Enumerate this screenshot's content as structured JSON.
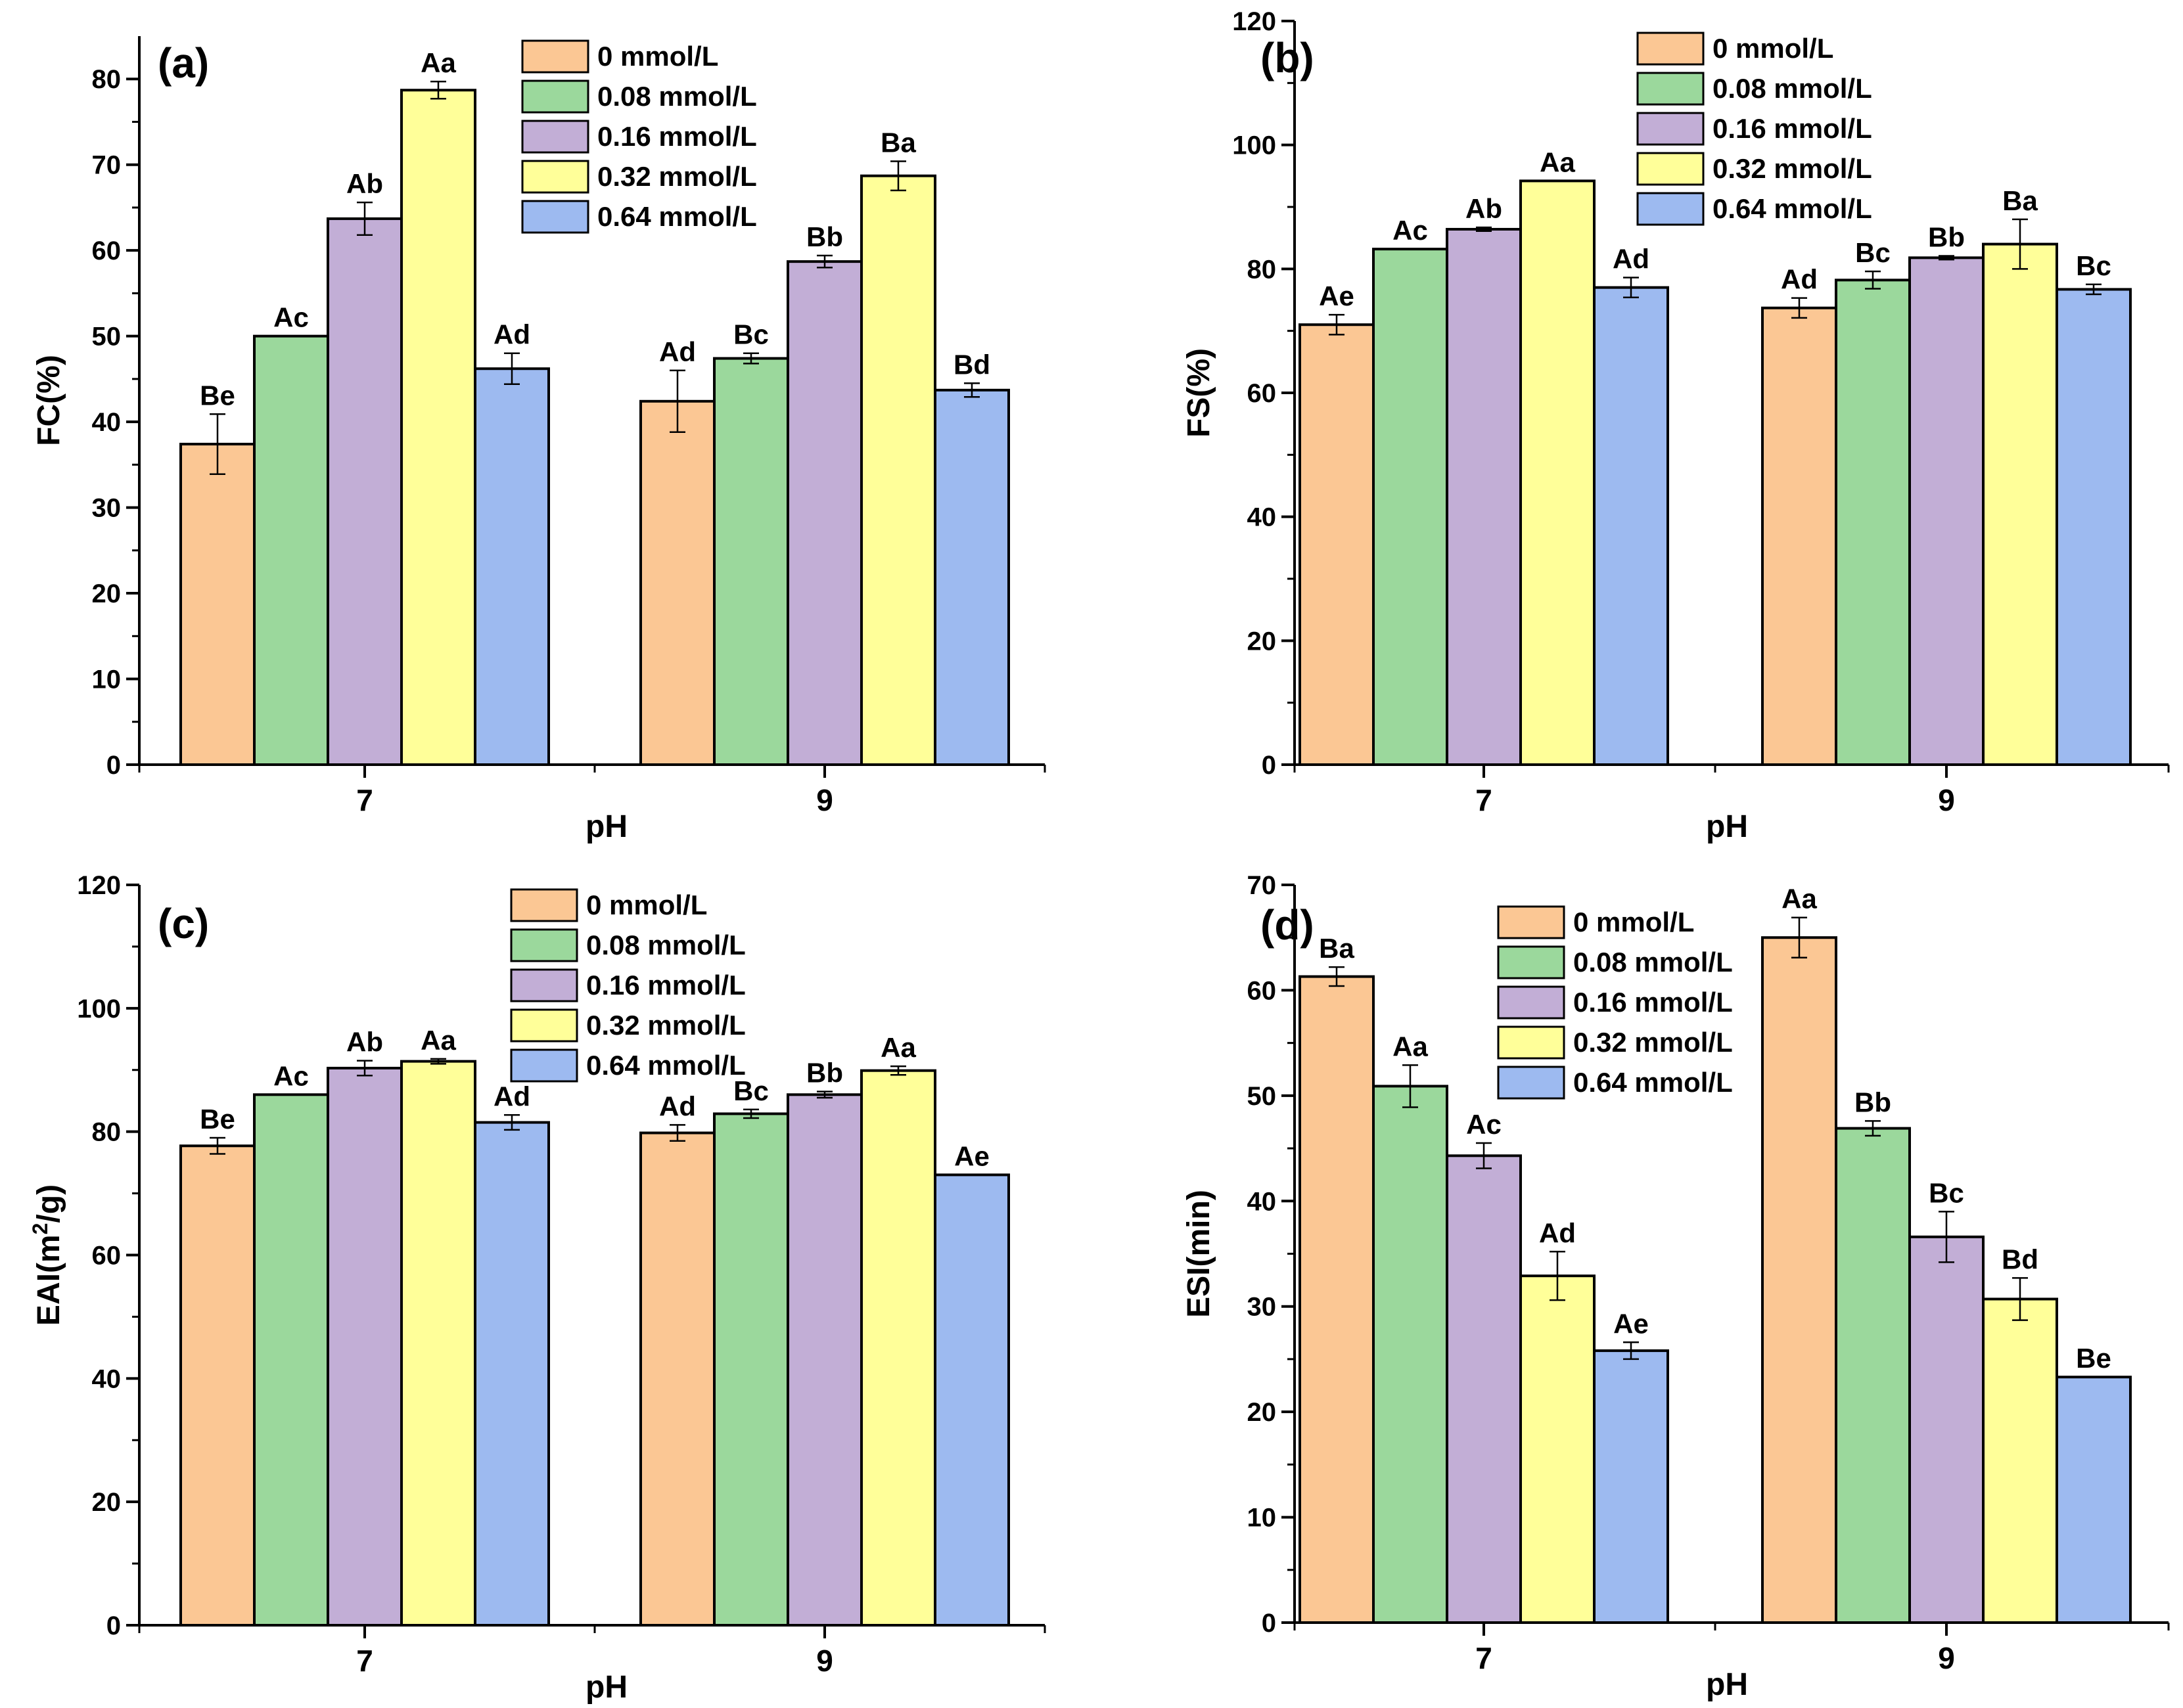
{
  "colors": {
    "s0": "#fbc794",
    "s1": "#9bd89c",
    "s2": "#c2aed6",
    "s3": "#ffff99",
    "s4": "#9dbaf0",
    "stroke": "#000000"
  },
  "chart_data": [
    {
      "type": "bar",
      "panel": "(a)",
      "xlabel": "pH",
      "ylabel": "FC(%)",
      "ylim": [
        0,
        85
      ],
      "yticks": [
        "0",
        "10",
        "20",
        "30",
        "40",
        "50",
        "60",
        "70",
        "80"
      ],
      "categories": [
        "7",
        "9"
      ],
      "legend_position": "top-center",
      "series": [
        {
          "name": "0 mmol/L",
          "values": [
            37.4,
            42.4
          ],
          "errors": [
            3.5,
            3.6
          ],
          "labels": [
            "Be",
            "Ad"
          ]
        },
        {
          "name": "0.08 mmol/L",
          "values": [
            50.0,
            47.4
          ],
          "errors": [
            0,
            0.6
          ],
          "labels": [
            "Ac",
            "Bc"
          ]
        },
        {
          "name": "0.16 mmol/L",
          "values": [
            63.7,
            58.7
          ],
          "errors": [
            1.9,
            0.7
          ],
          "labels": [
            "Ab",
            "Bb"
          ]
        },
        {
          "name": "0.32 mmol/L",
          "values": [
            78.7,
            68.7
          ],
          "errors": [
            1.0,
            1.7
          ],
          "labels": [
            "Aa",
            "Ba"
          ]
        },
        {
          "name": "0.64 mmol/L",
          "values": [
            46.2,
            43.7
          ],
          "errors": [
            1.8,
            0.8
          ],
          "labels": [
            "Ad",
            "Bd"
          ]
        }
      ]
    },
    {
      "type": "bar",
      "panel": "(b)",
      "xlabel": "pH",
      "ylabel": "FS(%)",
      "ylim": [
        0,
        120
      ],
      "yticks": [
        "0",
        "20",
        "40",
        "60",
        "80",
        "100",
        "120"
      ],
      "categories": [
        "7",
        "9"
      ],
      "legend_position": "top-center",
      "series": [
        {
          "name": "0 mmol/L",
          "values": [
            71.0,
            73.7
          ],
          "errors": [
            1.6,
            1.6
          ],
          "labels": [
            "Ae",
            "Ad"
          ]
        },
        {
          "name": "0.08 mmol/L",
          "values": [
            83.2,
            78.2
          ],
          "errors": [
            0,
            1.4
          ],
          "labels": [
            "Ac",
            "Bc"
          ]
        },
        {
          "name": "0.16 mmol/L",
          "values": [
            86.4,
            81.8
          ],
          "errors": [
            0.3,
            0.3
          ],
          "labels": [
            "Ab",
            "Bb"
          ]
        },
        {
          "name": "0.32 mmol/L",
          "values": [
            94.2,
            84.0
          ],
          "errors": [
            0,
            4.0
          ],
          "labels": [
            "Aa",
            "Ba"
          ]
        },
        {
          "name": "0.64 mmol/L",
          "values": [
            77.0,
            76.7
          ],
          "errors": [
            1.6,
            0.8
          ],
          "labels": [
            "Ad",
            "Bc"
          ]
        }
      ]
    },
    {
      "type": "bar",
      "panel": "(c)",
      "xlabel": "pH",
      "ylabel_main": "EAI(m",
      "ylabel_sup": "2",
      "ylabel_end": "/g)",
      "ylim": [
        0,
        120
      ],
      "yticks": [
        "0",
        "20",
        "40",
        "60",
        "80",
        "100",
        "120"
      ],
      "categories": [
        "7",
        "9"
      ],
      "legend_position": "top-center",
      "series": [
        {
          "name": "0 mmol/L",
          "values": [
            77.7,
            79.8
          ],
          "errors": [
            1.3,
            1.3
          ],
          "labels": [
            "Be",
            "Ad"
          ]
        },
        {
          "name": "0.08 mmol/L",
          "values": [
            86.0,
            82.9
          ],
          "errors": [
            0,
            0.7
          ],
          "labels": [
            "Ac",
            "Bc"
          ]
        },
        {
          "name": "0.16 mmol/L",
          "values": [
            90.3,
            86.0
          ],
          "errors": [
            1.2,
            0.5
          ],
          "labels": [
            "Ab",
            "Bb"
          ]
        },
        {
          "name": "0.32 mmol/L",
          "values": [
            91.4,
            89.9
          ],
          "errors": [
            0.4,
            0.7
          ],
          "labels": [
            "Aa",
            "Aa"
          ]
        },
        {
          "name": "0.64 mmol/L",
          "values": [
            81.5,
            73.0
          ],
          "errors": [
            1.2,
            0
          ],
          "labels": [
            "Ad",
            "Ae"
          ]
        }
      ]
    },
    {
      "type": "bar",
      "panel": "(d)",
      "xlabel": "pH",
      "ylabel": "ESI(min)",
      "ylim": [
        0,
        70
      ],
      "yticks": [
        "0",
        "10",
        "20",
        "30",
        "40",
        "50",
        "60",
        "70"
      ],
      "categories": [
        "7",
        "9"
      ],
      "legend_position": "top-center",
      "series": [
        {
          "name": "0 mmol/L",
          "values": [
            61.3,
            65.0
          ],
          "errors": [
            0.9,
            1.9
          ],
          "labels": [
            "Ba",
            "Aa"
          ]
        },
        {
          "name": "0.08 mmol/L",
          "values": [
            50.9,
            46.9
          ],
          "errors": [
            2.0,
            0.7
          ],
          "labels": [
            "Aa",
            "Bb"
          ]
        },
        {
          "name": "0.16 mmol/L",
          "values": [
            44.3,
            36.6
          ],
          "errors": [
            1.2,
            2.4
          ],
          "labels": [
            "Ac",
            "Bc"
          ]
        },
        {
          "name": "0.32 mmol/L",
          "values": [
            32.9,
            30.7
          ],
          "errors": [
            2.3,
            2.0
          ],
          "labels": [
            "Ad",
            "Bd"
          ]
        },
        {
          "name": "0.64 mmol/L",
          "values": [
            25.8,
            23.3
          ],
          "errors": [
            0.8,
            0
          ],
          "labels": [
            "Ae",
            "Be"
          ]
        }
      ]
    }
  ]
}
